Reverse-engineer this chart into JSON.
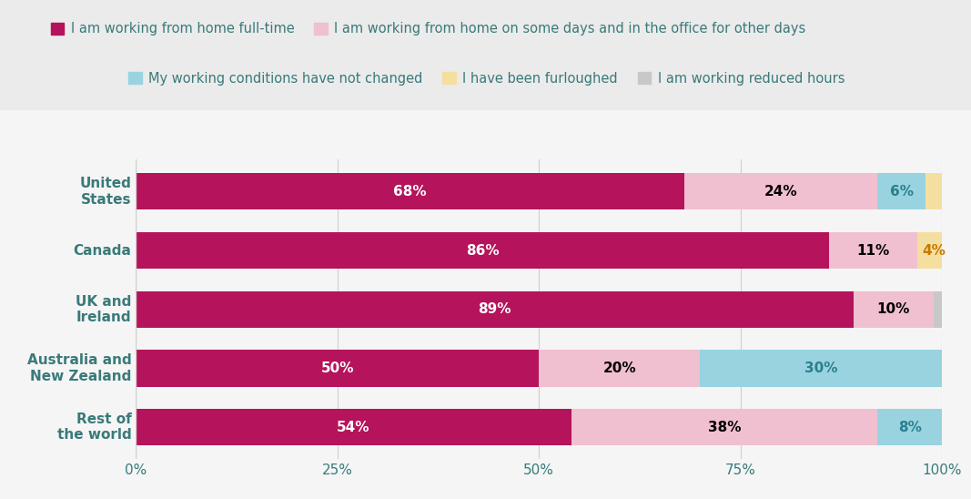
{
  "categories": [
    "United\nStates",
    "Canada",
    "UK and\nIreland",
    "Australia and\nNew Zealand",
    "Rest of\nthe world"
  ],
  "series": [
    {
      "label": "I am working from home full-time",
      "color": "#b5135b",
      "values": [
        68,
        86,
        89,
        50,
        54
      ],
      "text_color": "white",
      "show_pct": [
        true,
        true,
        true,
        true,
        true
      ]
    },
    {
      "label": "I am working from home on some days and in the office for other days",
      "color": "#f0c0d0",
      "values": [
        24,
        11,
        10,
        20,
        38
      ],
      "text_color": "black",
      "show_pct": [
        true,
        true,
        true,
        true,
        true
      ]
    },
    {
      "label": "My working conditions have not changed",
      "color": "#99d3e0",
      "values": [
        6,
        0,
        0,
        30,
        8
      ],
      "text_color": "#2a7f8f",
      "show_pct": [
        true,
        false,
        false,
        true,
        true
      ]
    },
    {
      "label": "I have been furloughed",
      "color": "#f5dfa0",
      "values": [
        2,
        4,
        0,
        0,
        0
      ],
      "text_color": "#c87800",
      "show_pct": [
        false,
        true,
        false,
        false,
        false
      ]
    },
    {
      "label": "I am working reduced hours",
      "color": "#c8c8c8",
      "values": [
        0,
        0,
        1,
        0,
        0
      ],
      "text_color": "black",
      "show_pct": [
        false,
        false,
        false,
        false,
        false
      ]
    }
  ],
  "background_color": "#f5f5f5",
  "title_color": "#3a7a7a",
  "axis_color": "#3a7a7a",
  "grid_color": "#d0d0d0",
  "legend_fontsize": 10.5,
  "bar_fontsize": 11,
  "tick_fontsize": 11,
  "xlim": [
    0,
    100
  ],
  "xticks": [
    0,
    25,
    50,
    75,
    100
  ],
  "xticklabels": [
    "0%",
    "25%",
    "50%",
    "75%",
    "100%"
  ],
  "legend_row1": [
    0,
    1
  ],
  "legend_row2": [
    2,
    3,
    4
  ]
}
